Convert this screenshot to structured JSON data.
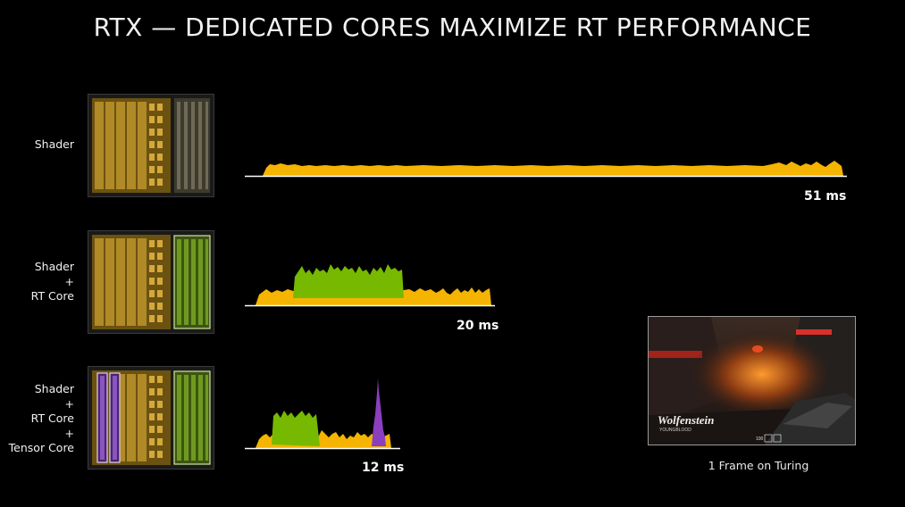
{
  "slide": {
    "title": "RTX — DEDICATED CORES MAXIMIZE RT PERFORMANCE",
    "caption": "1 Frame on Turing"
  },
  "rows": [
    {
      "labels": [
        "Shader"
      ],
      "time_label": "51 ms"
    },
    {
      "labels": [
        "Shader",
        "+",
        "RT Core"
      ],
      "time_label": "20 ms"
    },
    {
      "labels": [
        "Shader",
        "+",
        "RT Core",
        "+",
        "Tensor Core"
      ],
      "time_label": "12 ms"
    }
  ],
  "game": {
    "logo_text": "Wolfenstein",
    "logo_subtext": "YOUNGBLOOD",
    "hud_text": "100"
  },
  "colors": {
    "shader": "#f5b400",
    "rt_core": "#76b900",
    "tensor_core": "#8a3fbf"
  }
}
